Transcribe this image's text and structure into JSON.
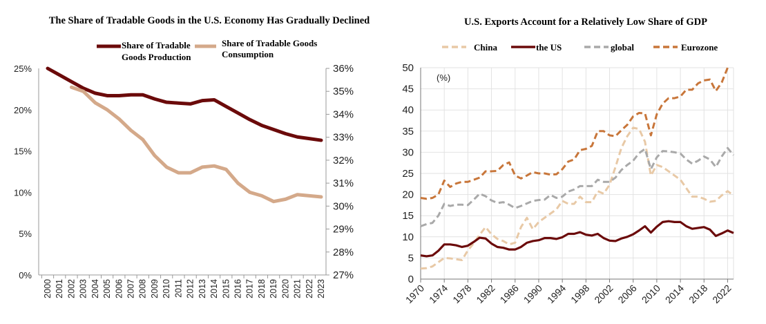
{
  "chart_data": [
    {
      "type": "line",
      "title": "The Share of Tradable Goods in the U.S. Economy Has Gradually Declined",
      "x": [
        2000,
        2001,
        2002,
        2003,
        2004,
        2005,
        2006,
        2007,
        2008,
        2009,
        2010,
        2011,
        2012,
        2013,
        2014,
        2015,
        2016,
        2017,
        2018,
        2019,
        2020,
        2021,
        2022,
        2023
      ],
      "ylim_left": [
        0,
        25
      ],
      "yticks_left": [
        "0%",
        "5%",
        "10%",
        "15%",
        "20%",
        "25%"
      ],
      "ylim_right": [
        27,
        36
      ],
      "yticks_right": [
        "27%",
        "28%",
        "29%",
        "30%",
        "31%",
        "32%",
        "33%",
        "34%",
        "35%",
        "36%"
      ],
      "legend_position": "top",
      "series": [
        {
          "name": "Share of Tradable Goods Production",
          "legend_lines": [
            "Share of Tradable",
            "Goods Production"
          ],
          "axis": "left",
          "color": "#6b0a0a",
          "values": [
            25.0,
            24.2,
            23.4,
            22.6,
            22.0,
            21.7,
            21.7,
            21.8,
            21.8,
            21.3,
            20.9,
            20.8,
            20.7,
            21.1,
            21.2,
            20.4,
            19.6,
            18.8,
            18.1,
            17.6,
            17.1,
            16.7,
            16.5,
            16.3
          ]
        },
        {
          "name": "Share of Tradable Goods Consumption",
          "legend_lines": [
            "Share of Tradable Goods",
            "Consumption"
          ],
          "axis": "right",
          "color": "#d4a98a",
          "values": [
            null,
            null,
            35.18,
            35.0,
            34.5,
            34.2,
            33.8,
            33.3,
            32.9,
            32.2,
            31.7,
            31.45,
            31.45,
            31.7,
            31.75,
            31.6,
            31.0,
            30.6,
            30.45,
            30.2,
            30.3,
            30.5,
            30.45,
            30.4
          ]
        }
      ]
    },
    {
      "type": "line",
      "title": "U.S. Exports Account for a Relatively Low Share of GDP",
      "unit_label": "(%)",
      "x_start": 1970,
      "x_end": 2023,
      "xticks": [
        "1970",
        "1974",
        "1978",
        "1982",
        "1986",
        "1990",
        "1994",
        "1998",
        "2002",
        "2006",
        "2010",
        "2014",
        "2018",
        "2022"
      ],
      "ylim": [
        0,
        50
      ],
      "yticks": [
        "0",
        "5",
        "10",
        "15",
        "20",
        "25",
        "30",
        "35",
        "40",
        "45",
        "50"
      ],
      "grid": true,
      "legend_position": "top",
      "series": [
        {
          "name": "China",
          "color": "#e8c9a6",
          "dash": true,
          "values": [
            2.5,
            2.6,
            3.0,
            4.0,
            5.0,
            4.9,
            4.7,
            4.5,
            6.8,
            8.5,
            10.5,
            12.3,
            10.6,
            9.5,
            9.0,
            8.2,
            8.6,
            12.3,
            14.5,
            11.8,
            13.5,
            14.5,
            15.5,
            16.5,
            18.5,
            17.8,
            17.8,
            19.5,
            18.2,
            18.2,
            20.8,
            20.2,
            22.3,
            26.5,
            31.0,
            33.8,
            35.8,
            35.5,
            32.5,
            24.5,
            27.0,
            26.5,
            25.5,
            24.5,
            23.5,
            21.5,
            19.5,
            19.5,
            19.0,
            18.3,
            18.5,
            19.8,
            20.8,
            19.8
          ]
        },
        {
          "name": "the US",
          "color": "#6b0a0a",
          "dash": false,
          "values": [
            5.6,
            5.4,
            5.6,
            6.7,
            8.2,
            8.2,
            8.0,
            7.6,
            7.9,
            8.8,
            9.8,
            9.6,
            8.4,
            7.6,
            7.4,
            7.0,
            7.0,
            7.6,
            8.6,
            9.0,
            9.2,
            9.7,
            9.7,
            9.5,
            9.9,
            10.7,
            10.7,
            11.1,
            10.5,
            10.3,
            10.7,
            9.7,
            9.1,
            9.0,
            9.6,
            10.0,
            10.6,
            11.5,
            12.5,
            11.0,
            12.4,
            13.5,
            13.7,
            13.5,
            13.5,
            12.5,
            11.9,
            12.1,
            12.3,
            11.7,
            10.2,
            10.8,
            11.5,
            10.9
          ]
        },
        {
          "name": "global",
          "color": "#a9a9a9",
          "dash": true,
          "values": [
            12.5,
            13.0,
            13.3,
            15.0,
            17.8,
            17.3,
            17.6,
            17.6,
            17.5,
            18.8,
            20.2,
            19.6,
            18.6,
            18.0,
            18.2,
            17.6,
            16.8,
            17.3,
            17.9,
            18.5,
            18.7,
            18.8,
            19.9,
            19.2,
            19.5,
            20.7,
            21.2,
            22.0,
            22.0,
            22.0,
            23.5,
            23.0,
            23.0,
            24.0,
            25.8,
            27.0,
            28.0,
            29.8,
            30.8,
            26.0,
            28.8,
            30.3,
            30.2,
            30.0,
            29.7,
            28.3,
            27.3,
            28.0,
            29.0,
            28.3,
            26.5,
            29.0,
            31.0,
            29.3
          ]
        },
        {
          "name": "Eurozone",
          "color": "#c8763a",
          "dash": true,
          "values": [
            19.2,
            19.0,
            19.2,
            20.0,
            23.3,
            21.8,
            22.6,
            23.0,
            23.0,
            23.5,
            24.0,
            25.5,
            25.5,
            25.6,
            27.0,
            27.6,
            24.5,
            23.8,
            24.5,
            25.3,
            25.0,
            25.0,
            24.7,
            24.8,
            26.0,
            27.8,
            28.3,
            30.5,
            30.8,
            31.5,
            35.0,
            35.0,
            34.0,
            33.8,
            35.2,
            36.5,
            38.5,
            39.3,
            39.2,
            34.0,
            39.0,
            41.5,
            42.8,
            42.8,
            43.2,
            44.8,
            44.8,
            46.3,
            47.0,
            47.2,
            44.5,
            46.5,
            50.0,
            null
          ]
        }
      ]
    }
  ]
}
